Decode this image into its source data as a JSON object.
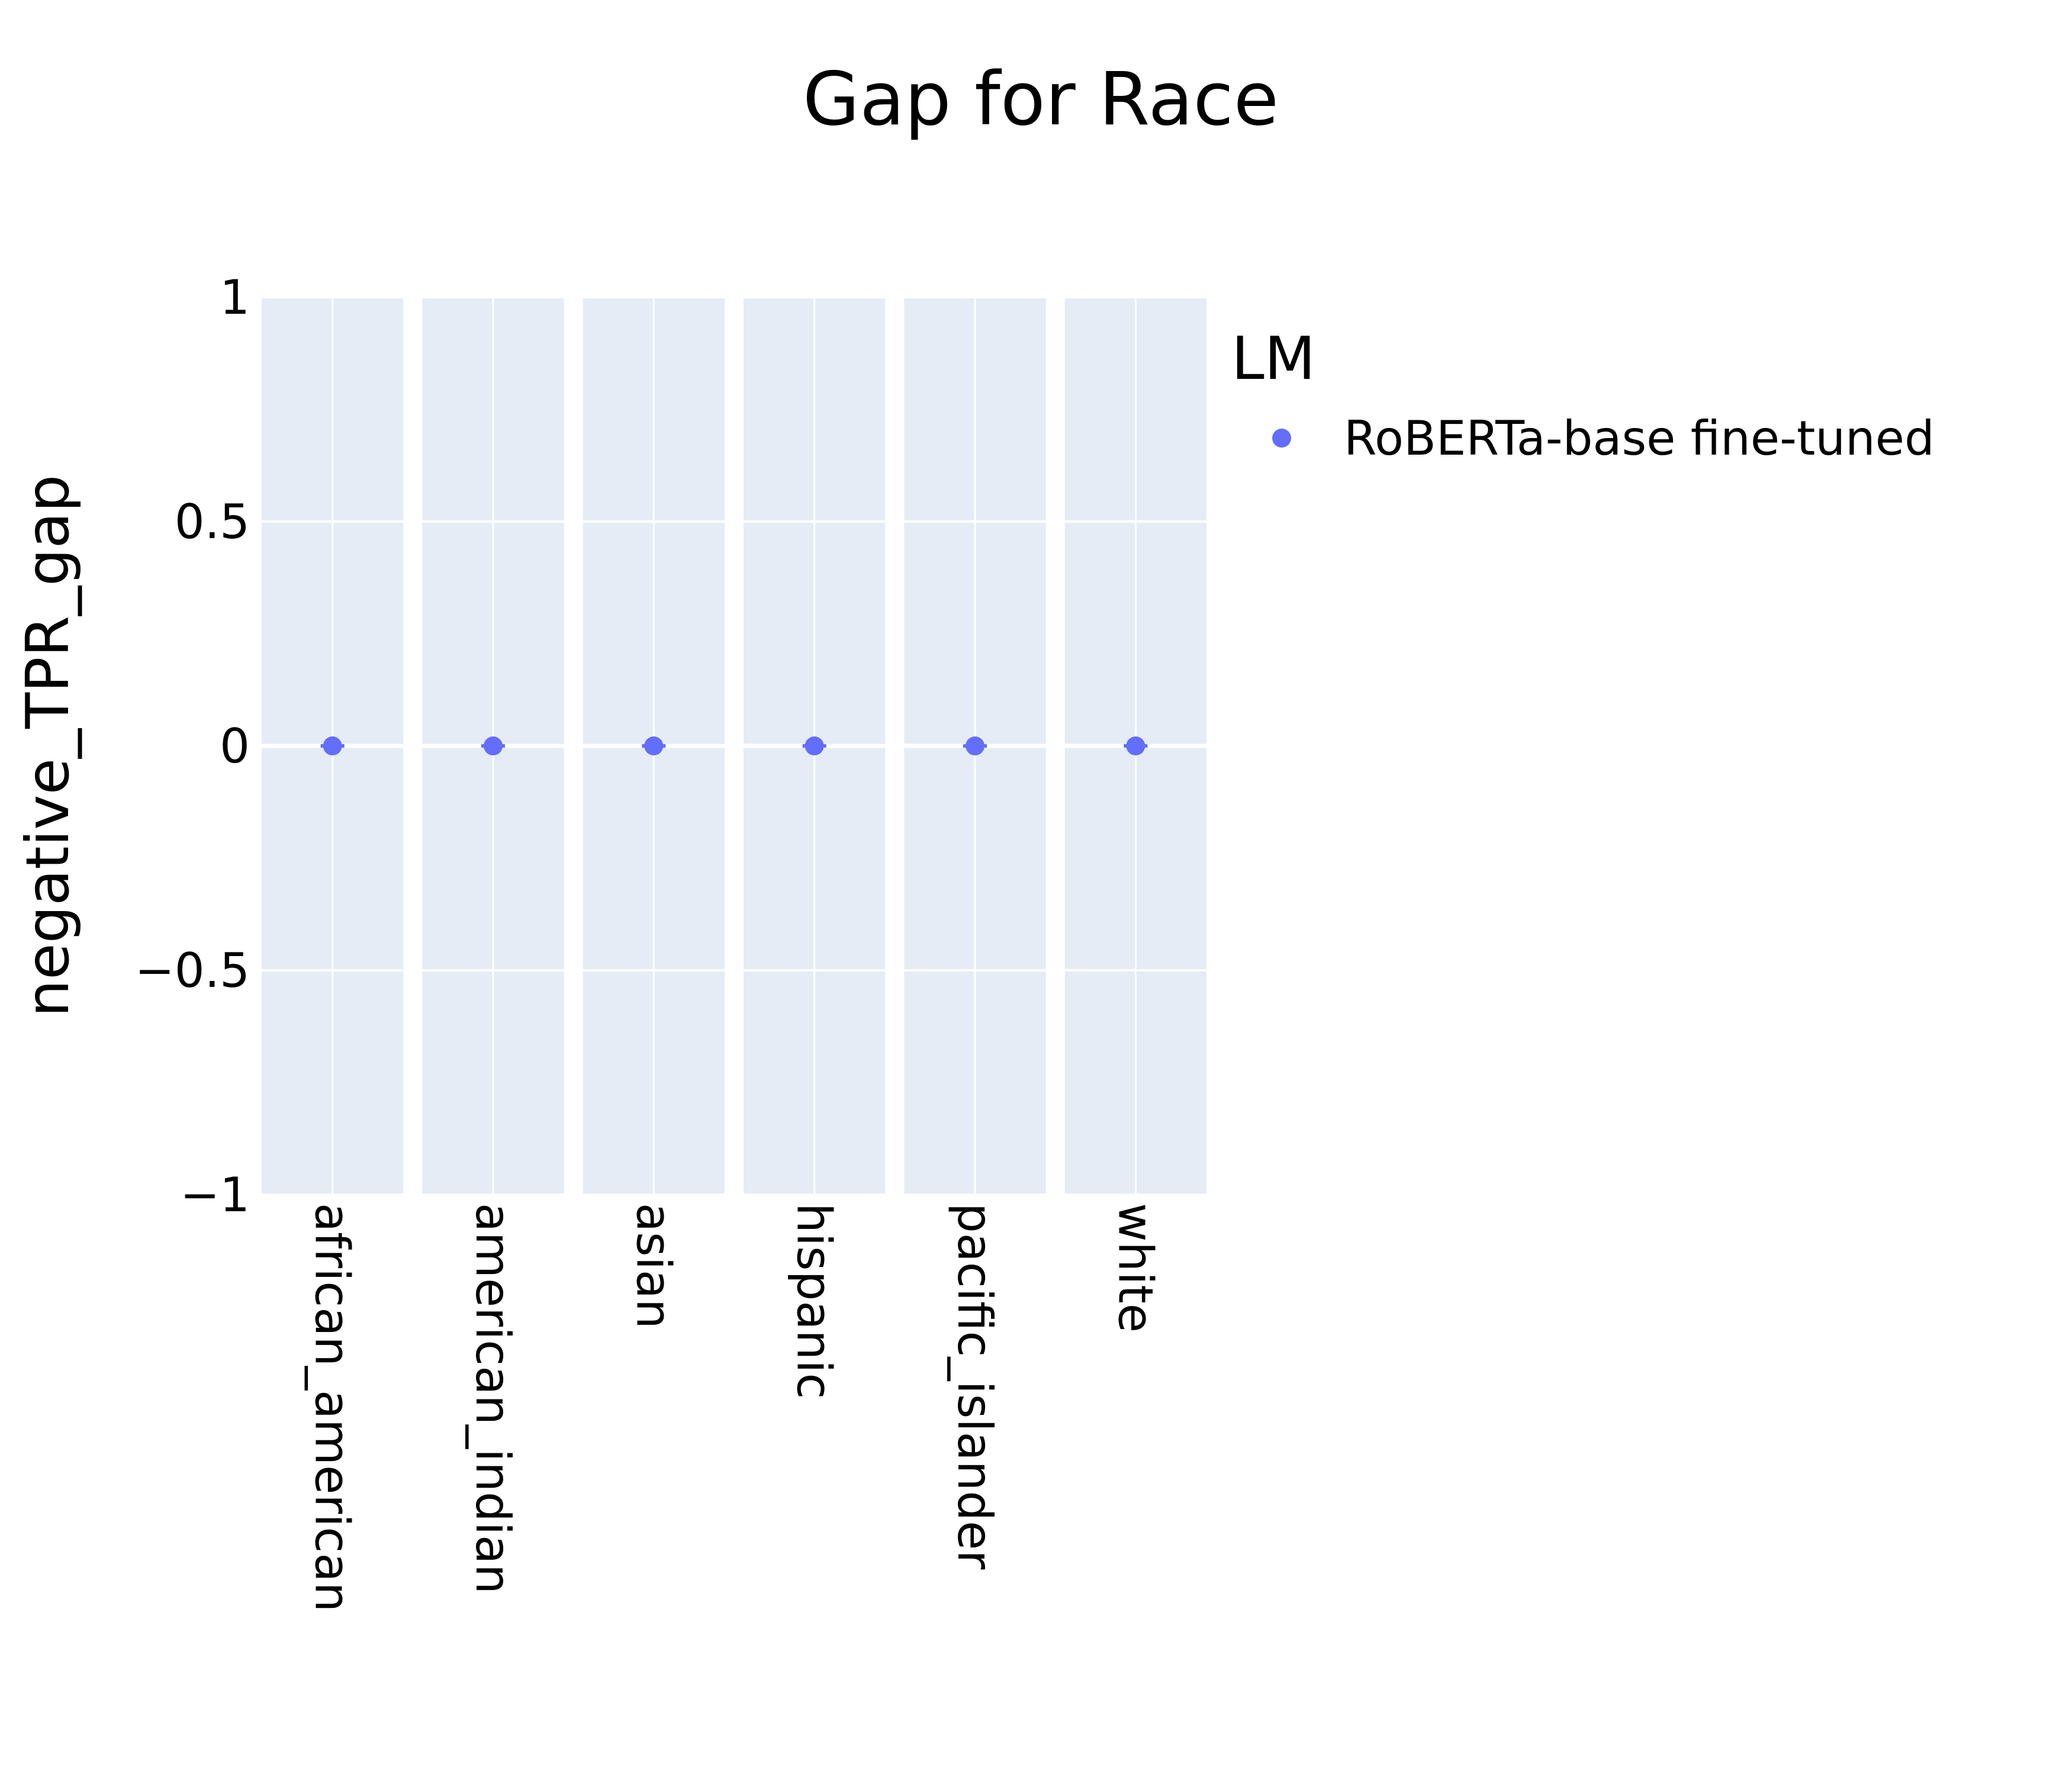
{
  "chart_data": {
    "type": "scatter",
    "title": "Gap for Race",
    "ylabel": "negative_TPR_gap",
    "xlabel": "",
    "ylim": [
      -1,
      1
    ],
    "yticks": [
      1,
      0.5,
      0,
      -0.5,
      -1
    ],
    "ytick_labels": [
      "1",
      "0.5",
      "0",
      "−0.5",
      "−1"
    ],
    "grid": true,
    "facet_by": "race",
    "categories": [
      "african_american",
      "american_indian",
      "asian",
      "hispanic",
      "pacific_islander",
      "white"
    ],
    "legend": {
      "title": "LM",
      "placement": "right-top"
    },
    "series": [
      {
        "name": "RoBERTa-base fine-tuned",
        "color": "#636efa",
        "values": [
          0,
          0,
          0,
          0,
          0,
          0
        ]
      }
    ],
    "colors": {
      "plot_bg": "#e5ecf6",
      "grid": "#ffffff",
      "marker": "#636efa"
    }
  }
}
